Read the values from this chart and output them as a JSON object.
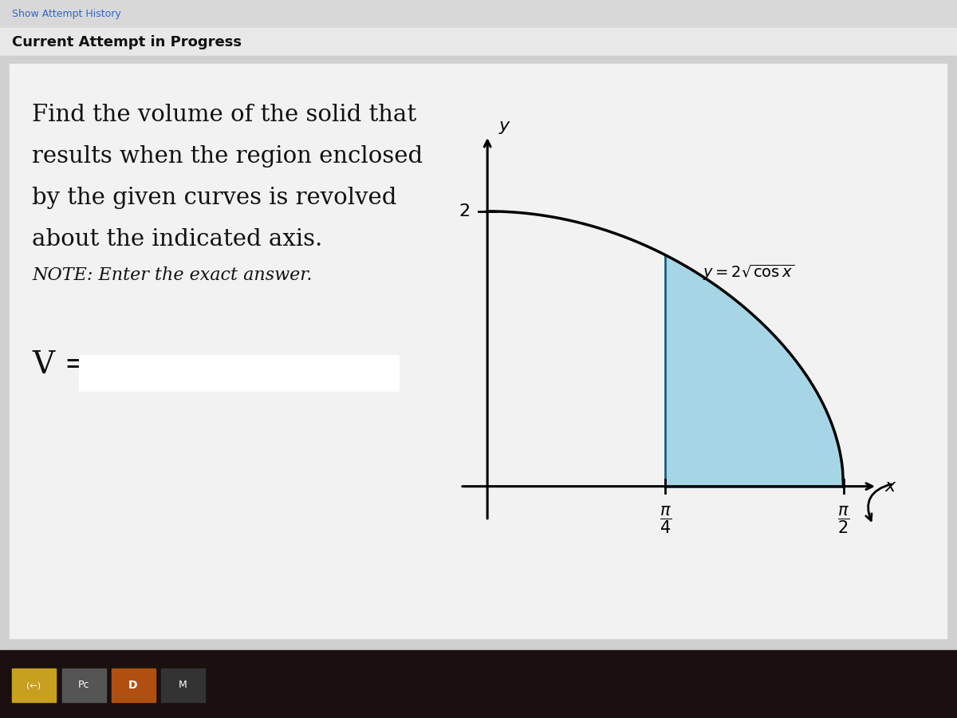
{
  "title_text": "Current Attempt in Progress",
  "problem_lines": [
    "Find the volume of the solid that",
    "results when the region enclosed",
    "by the given curves is revolved",
    "about the indicated axis."
  ],
  "note_line": "NOTE: Enter the exact answer.",
  "v_label": "V =",
  "fill_color": "#7DC8E0",
  "fill_alpha": 0.65,
  "curve_color": "#000000",
  "bg_page": "#d4d4d4",
  "bg_card": "#f0f0f0",
  "bg_top": "#e0e0e0",
  "bg_bottom": "#1a1010",
  "taskbar_color": "#1e1e1e",
  "graph_bg": "#f0f0f0"
}
